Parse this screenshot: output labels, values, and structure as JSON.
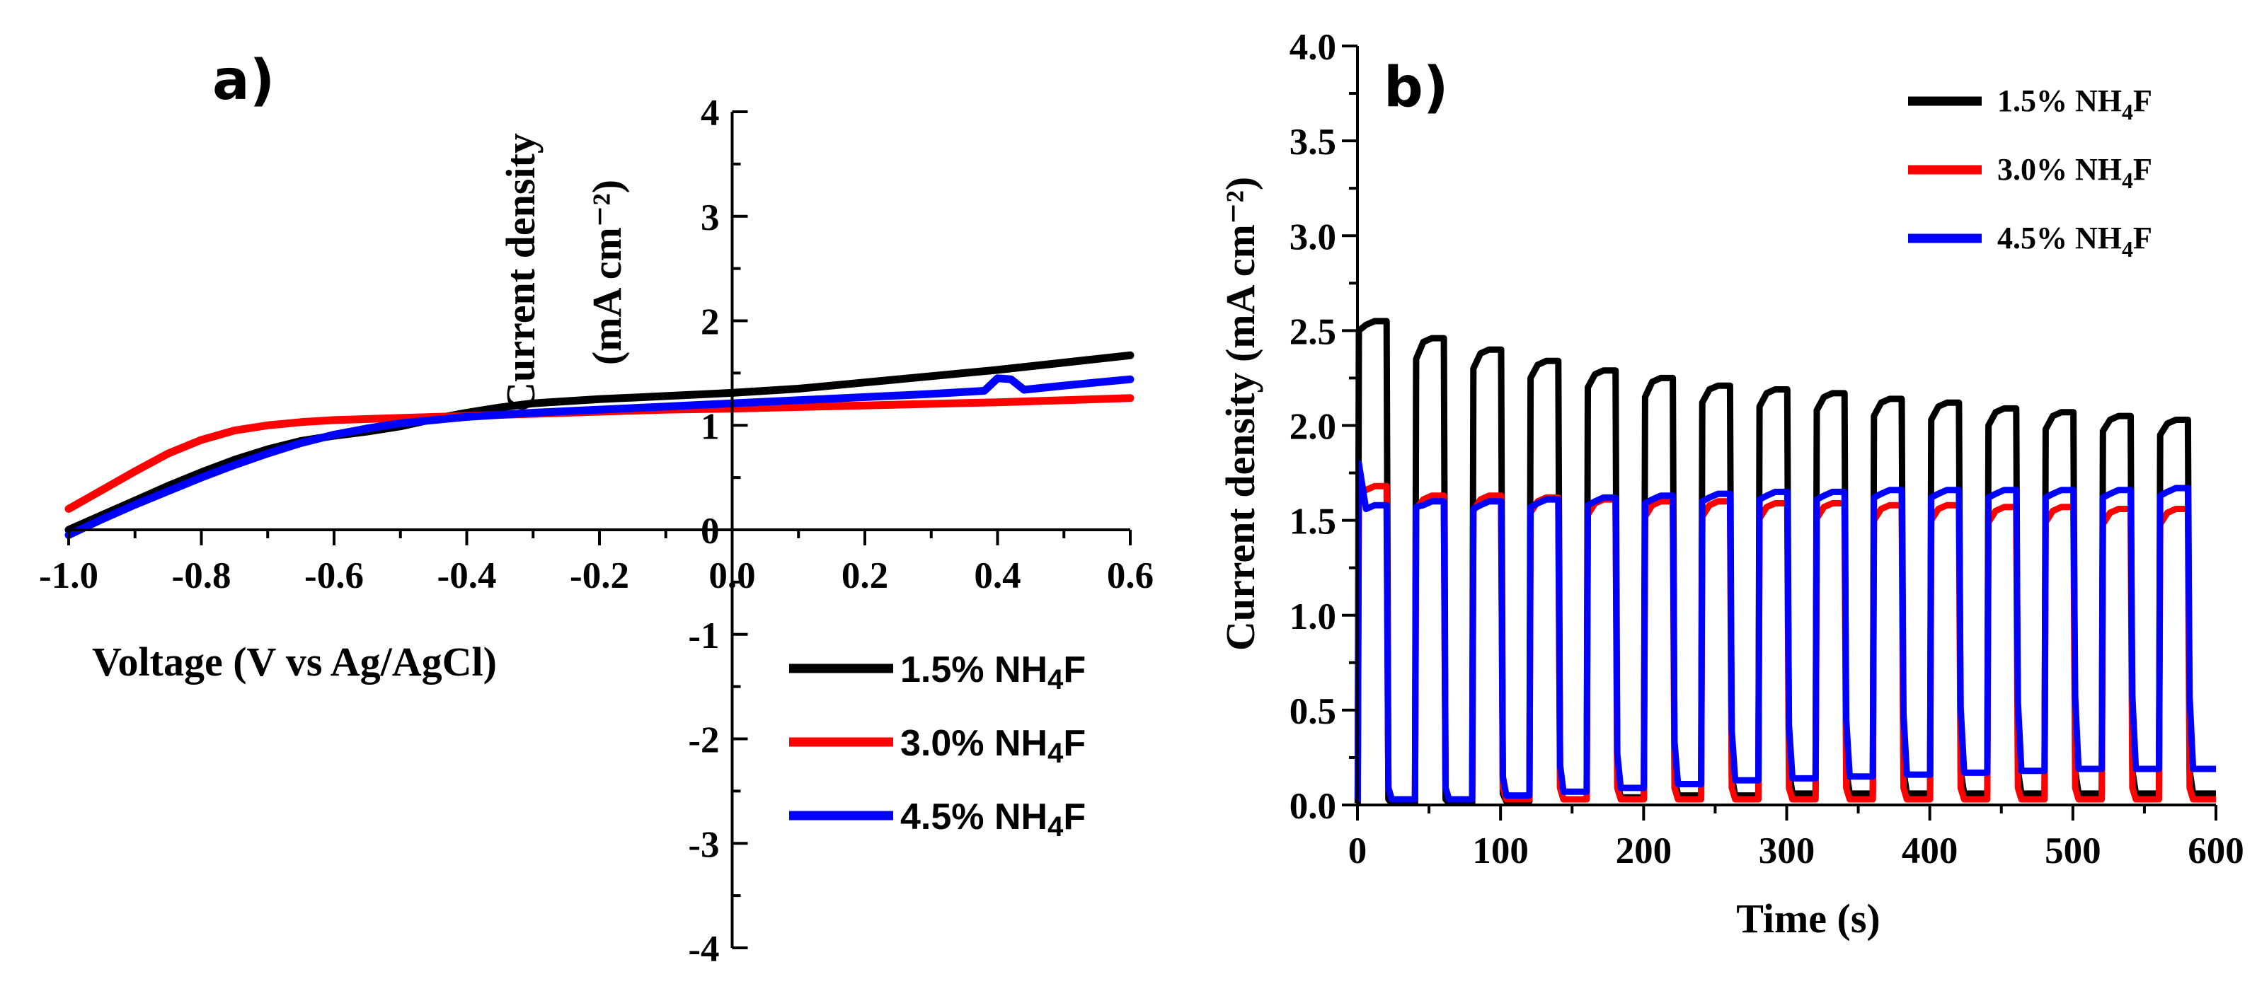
{
  "chart_data": [
    {
      "panel_label": "a)",
      "type": "line",
      "xlabel": "Voltage (V vs Ag/AgCl)",
      "ylabel_line1": "Current density",
      "ylabel_line2": "(mA cm⁻²)",
      "xlim": [
        -1.0,
        0.6
      ],
      "ylim": [
        -4,
        4
      ],
      "x_ticks": [
        "-1.0",
        "-0.8",
        "-0.6",
        "-0.4",
        "-0.2",
        "0.0",
        "0.2",
        "0.4",
        "0.6"
      ],
      "y_ticks": [
        "-4",
        "-3",
        "-2",
        "-1",
        "0",
        "1",
        "2",
        "3",
        "4"
      ],
      "legend_position": "bottom-right",
      "series": [
        {
          "name": "1.5% NH₄F",
          "color": "#000000",
          "x": [
            -1.0,
            -0.95,
            -0.9,
            -0.85,
            -0.8,
            -0.75,
            -0.7,
            -0.65,
            -0.6,
            -0.55,
            -0.5,
            -0.45,
            -0.4,
            -0.35,
            -0.3,
            -0.2,
            -0.1,
            0.0,
            0.1,
            0.2,
            0.3,
            0.4,
            0.5,
            0.6
          ],
          "y": [
            0.0,
            0.14,
            0.28,
            0.42,
            0.55,
            0.67,
            0.77,
            0.85,
            0.9,
            0.94,
            0.99,
            1.06,
            1.12,
            1.17,
            1.21,
            1.25,
            1.28,
            1.31,
            1.35,
            1.41,
            1.47,
            1.53,
            1.6,
            1.67
          ]
        },
        {
          "name": "3.0% NH₄F",
          "color": "#ff0000",
          "x": [
            -1.0,
            -0.95,
            -0.9,
            -0.85,
            -0.8,
            -0.75,
            -0.7,
            -0.65,
            -0.6,
            -0.5,
            -0.4,
            -0.3,
            -0.2,
            -0.1,
            0.0,
            0.2,
            0.4,
            0.6
          ],
          "y": [
            0.2,
            0.38,
            0.56,
            0.73,
            0.86,
            0.95,
            1.0,
            1.03,
            1.05,
            1.07,
            1.09,
            1.11,
            1.13,
            1.15,
            1.16,
            1.19,
            1.22,
            1.26
          ]
        },
        {
          "name": "4.5% NH₄F",
          "color": "#0000ff",
          "x": [
            -1.0,
            -0.95,
            -0.9,
            -0.85,
            -0.8,
            -0.75,
            -0.7,
            -0.65,
            -0.6,
            -0.55,
            -0.5,
            -0.45,
            -0.4,
            -0.3,
            -0.2,
            -0.1,
            0.0,
            0.1,
            0.2,
            0.3,
            0.38,
            0.4,
            0.42,
            0.44,
            0.5,
            0.6
          ],
          "y": [
            -0.05,
            0.1,
            0.24,
            0.37,
            0.5,
            0.62,
            0.73,
            0.83,
            0.91,
            0.97,
            1.02,
            1.05,
            1.08,
            1.12,
            1.15,
            1.18,
            1.21,
            1.24,
            1.27,
            1.3,
            1.33,
            1.45,
            1.44,
            1.34,
            1.38,
            1.44
          ]
        }
      ]
    },
    {
      "panel_label": "b)",
      "type": "line",
      "xlabel": "Time (s)",
      "ylabel": "Current density (mA cm⁻²)",
      "xlim": [
        0,
        600
      ],
      "ylim": [
        0.0,
        4.0
      ],
      "x_ticks": [
        "0",
        "100",
        "200",
        "300",
        "400",
        "500",
        "600"
      ],
      "y_ticks": [
        "0.0",
        "0.5",
        "1.0",
        "1.5",
        "2.0",
        "2.5",
        "3.0",
        "3.5",
        "4.0"
      ],
      "legend_position": "top-right",
      "chopped_light": {
        "period_s": 40,
        "on_duration_s": 21,
        "first_on_s": 0
      },
      "series": [
        {
          "name": "1.5% NH₄F",
          "color": "#000000",
          "on_current": [
            2.55,
            2.46,
            2.4,
            2.34,
            2.29,
            2.25,
            2.21,
            2.19,
            2.17,
            2.14,
            2.12,
            2.09,
            2.07,
            2.05,
            2.03
          ],
          "on_start_current": [
            2.5,
            2.35,
            2.3,
            2.25,
            2.2,
            2.15,
            2.12,
            2.1,
            2.08,
            2.05,
            2.03,
            2.0,
            1.98,
            1.97,
            1.95
          ],
          "off_current": [
            0.01,
            0.01,
            0.01,
            0.02,
            0.03,
            0.04,
            0.05,
            0.05,
            0.06,
            0.06,
            0.06,
            0.06,
            0.06,
            0.06,
            0.06
          ]
        },
        {
          "name": "3.0% NH₄F",
          "color": "#ff0000",
          "on_current": [
            1.68,
            1.63,
            1.63,
            1.62,
            1.61,
            1.6,
            1.6,
            1.59,
            1.59,
            1.58,
            1.58,
            1.57,
            1.57,
            1.56,
            1.56
          ],
          "on_start_current": [
            1.68,
            1.56,
            1.55,
            1.54,
            1.53,
            1.52,
            1.52,
            1.51,
            1.51,
            1.5,
            1.5,
            1.49,
            1.49,
            1.48,
            1.48
          ],
          "off_current": [
            0.03,
            0.03,
            0.03,
            0.03,
            0.03,
            0.03,
            0.03,
            0.03,
            0.03,
            0.03,
            0.03,
            0.03,
            0.03,
            0.03,
            0.03
          ]
        },
        {
          "name": "4.5% NH₄F",
          "color": "#0000ff",
          "on_current": [
            1.58,
            1.6,
            1.6,
            1.61,
            1.62,
            1.63,
            1.64,
            1.65,
            1.65,
            1.66,
            1.66,
            1.66,
            1.66,
            1.66,
            1.67
          ],
          "on_start_current": [
            1.8,
            1.57,
            1.56,
            1.57,
            1.58,
            1.59,
            1.6,
            1.61,
            1.61,
            1.62,
            1.62,
            1.62,
            1.62,
            1.62,
            1.63
          ],
          "off_current": [
            0.03,
            0.03,
            0.03,
            0.05,
            0.07,
            0.09,
            0.11,
            0.13,
            0.14,
            0.15,
            0.16,
            0.17,
            0.18,
            0.19,
            0.19
          ]
        }
      ]
    }
  ]
}
